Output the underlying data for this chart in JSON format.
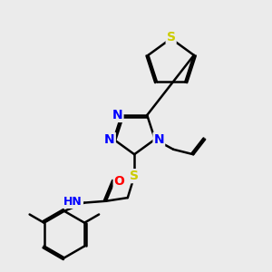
{
  "background_color": "#ebebeb",
  "atom_colors": {
    "N": "#0000ff",
    "S": "#cccc00",
    "O": "#ff0000",
    "C": "#000000",
    "H": "#555555"
  },
  "bond_color": "#000000",
  "bond_width": 1.8,
  "label_fontsize": 10
}
